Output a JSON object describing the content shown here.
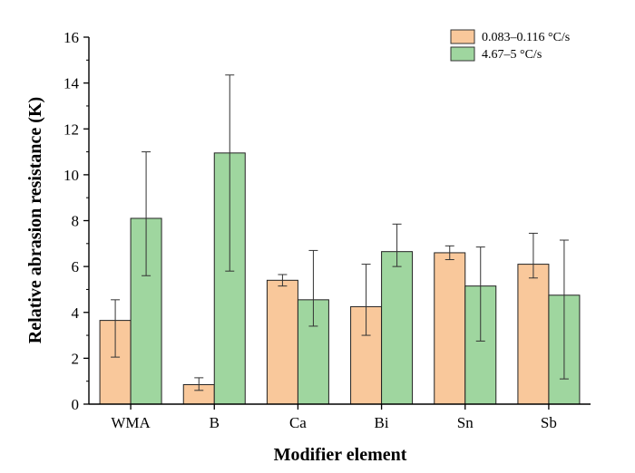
{
  "chart_data": {
    "type": "bar",
    "title": "",
    "xlabel": "Modifier element",
    "ylabel": "Relative abrasion resistance (K)",
    "ylim": [
      0,
      16
    ],
    "yticks": [
      0,
      2,
      4,
      6,
      8,
      10,
      12,
      14,
      16
    ],
    "categories": [
      "WMA",
      "B",
      "Ca",
      "Bi",
      "Sn",
      "Sb"
    ],
    "series": [
      {
        "name": "0.083–0.116 °C/s",
        "color": "#f9c89b",
        "values": [
          3.65,
          0.85,
          5.4,
          4.25,
          6.6,
          6.1
        ],
        "err_low": [
          2.05,
          0.6,
          5.15,
          3.0,
          6.3,
          5.5
        ],
        "err_high": [
          4.55,
          1.15,
          5.65,
          6.1,
          6.9,
          7.45
        ]
      },
      {
        "name": "4.67–5 °C/s",
        "color": "#9fd69f",
        "values": [
          8.1,
          10.95,
          4.55,
          6.65,
          5.15,
          4.75
        ],
        "err_low": [
          5.6,
          5.8,
          3.4,
          6.0,
          2.75,
          1.1
        ],
        "err_high": [
          11.0,
          14.35,
          6.7,
          7.85,
          6.85,
          7.15
        ]
      }
    ],
    "legend_position": "top-right"
  }
}
